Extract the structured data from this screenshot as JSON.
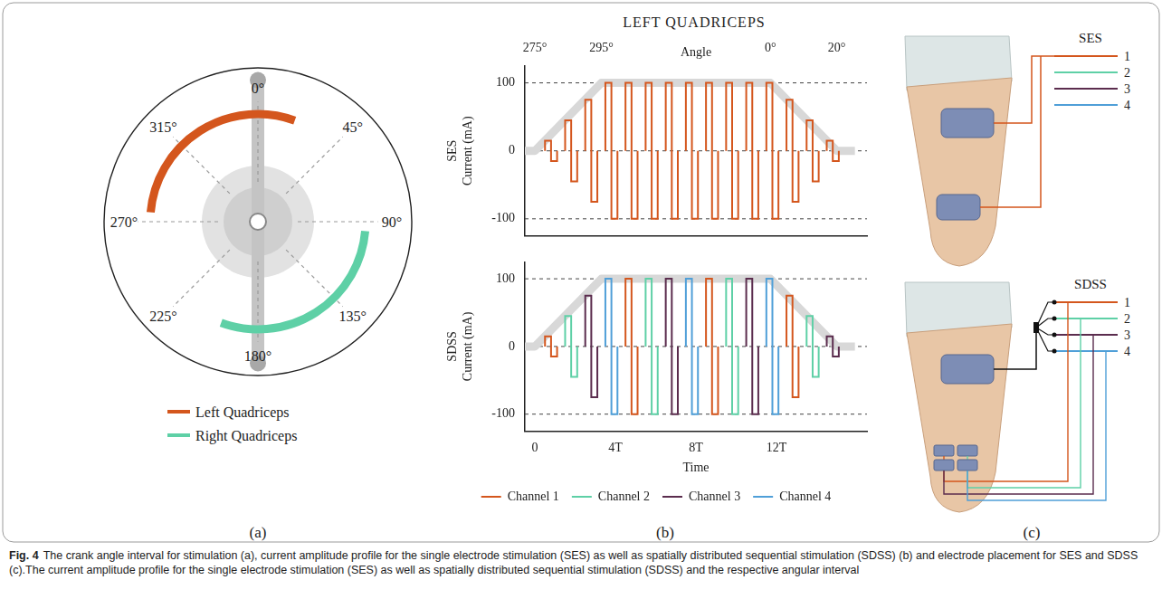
{
  "figure": {
    "a": {
      "label": "(a)",
      "angle_ticks": [
        {
          "value": 0,
          "label": "0°"
        },
        {
          "value": 45,
          "label": "45°"
        },
        {
          "value": 90,
          "label": "90°"
        },
        {
          "value": 135,
          "label": "135°"
        },
        {
          "value": 180,
          "label": "180°"
        },
        {
          "value": 225,
          "label": "225°"
        },
        {
          "value": 270,
          "label": "270°"
        },
        {
          "value": 315,
          "label": "315°"
        }
      ],
      "intervals": [
        {
          "name": "Left Quadriceps",
          "color": "#d4561d",
          "start": 275,
          "end": 20
        },
        {
          "name": "Right Quadriceps",
          "color": "#5ed0a6",
          "start": 95,
          "end": 200
        }
      ],
      "legend": "bottom"
    },
    "b": {
      "label": "(b)",
      "title": "LEFT QUADRICEPS"
    },
    "c": {
      "label": "(c)",
      "diagrams": [
        {
          "title": "SES",
          "terminals": [
            "1",
            "2",
            "3",
            "4"
          ]
        },
        {
          "title": "SDSS",
          "terminals": [
            "1",
            "2",
            "3",
            "4"
          ]
        }
      ]
    }
  },
  "chart_data": [
    {
      "type": "line",
      "y_label": [
        "SES",
        "Current (mA)"
      ],
      "xlim": [
        -0.5,
        16.5
      ],
      "tick_labels": "y",
      "x2_label": "Angle",
      "x2ticks": [
        {
          "value": 0,
          "label": "275°"
        },
        {
          "value": 3.3,
          "label": "295°"
        },
        {
          "value": 11.7,
          "label": "0°"
        },
        {
          "value": 15,
          "label": "20°"
        }
      ],
      "ylim": [
        -125,
        125
      ],
      "yticks": [
        -100,
        0,
        100
      ],
      "grid": true,
      "pulse_width": 0.3,
      "envelope": {
        "x": [
          -0.5,
          0,
          3.3,
          11.7,
          15,
          15.9
        ],
        "y": [
          0,
          0,
          100,
          100,
          0,
          0
        ]
      },
      "series": [
        {
          "color": "#d4561d",
          "t": [
            0.5,
            1.5,
            2.5,
            3.5,
            4.5,
            5.5,
            6.5,
            7.5,
            8.5,
            9.5,
            10.5,
            11.5,
            12.5,
            13.5,
            14.5
          ],
          "values": [
            15,
            45,
            75,
            100,
            100,
            100,
            100,
            100,
            100,
            100,
            100,
            100,
            75,
            45,
            15
          ]
        }
      ]
    },
    {
      "type": "line",
      "y_label": [
        "SDSS",
        "Current (mA)"
      ],
      "x_label": "Time",
      "xlim": [
        -0.5,
        16.5
      ],
      "xticks": [
        0,
        {
          "value": 4,
          "label": "4T"
        },
        {
          "value": 8,
          "label": "8T"
        },
        {
          "value": 12,
          "label": "12T"
        }
      ],
      "ylim": [
        -125,
        125
      ],
      "yticks": [
        -100,
        0,
        100
      ],
      "grid": true,
      "pulse_width": 0.3,
      "legend": "bottom",
      "envelope": {
        "x": [
          -0.5,
          0,
          3.3,
          11.7,
          15,
          15.9
        ],
        "y": [
          0,
          0,
          100,
          100,
          0,
          0
        ]
      },
      "series": [
        {
          "name": "Channel 1",
          "color": "#d4561d",
          "t": [
            0.5,
            4.5,
            8.5,
            12.5
          ],
          "values": [
            15,
            100,
            100,
            75
          ]
        },
        {
          "name": "Channel 2",
          "color": "#5ed0a6",
          "t": [
            1.5,
            5.5,
            9.5,
            13.5
          ],
          "values": [
            45,
            100,
            100,
            45
          ]
        },
        {
          "name": "Channel 3",
          "color": "#5b2d4e",
          "t": [
            2.5,
            6.5,
            10.5,
            14.5
          ],
          "values": [
            75,
            100,
            100,
            15
          ]
        },
        {
          "name": "Channel 4",
          "color": "#4f9fd8",
          "t": [
            3.5,
            7.5,
            11.5
          ],
          "values": [
            100,
            100,
            100
          ]
        }
      ]
    }
  ],
  "caption": {
    "label": "Fig. 4",
    "text": "The crank angle interval for stimulation (a), current amplitude profile for the single electrode stimulation (SES) as well as spatially distributed sequential stimulation (SDSS) (b) and electrode placement for SES and SDSS (c).The current amplitude profile for the single electrode stimulation (SES) as well as spatially distributed sequential stimulation (SDSS) and the respective angular interval"
  }
}
